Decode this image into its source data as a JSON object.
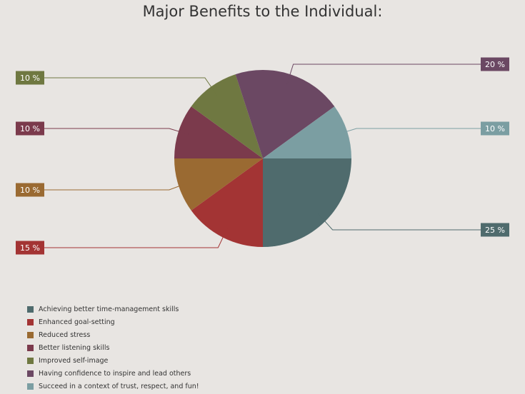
{
  "chart_data": {
    "type": "pie",
    "title": "Major Benefits to the Individual:",
    "slices": [
      {
        "label": "Achieving better time-management skills",
        "value": 25,
        "value_label": "25 %",
        "color": "#4f6b6d"
      },
      {
        "label": "Enhanced goal-setting",
        "value": 15,
        "value_label": "15 %",
        "color": "#a33434"
      },
      {
        "label": "Reduced stress",
        "value": 10,
        "value_label": "10 %",
        "color": "#9a6a32"
      },
      {
        "label": "Better listening skills",
        "value": 10,
        "value_label": "10 %",
        "color": "#7b3a4c"
      },
      {
        "label": "Improved self-image",
        "value": 10,
        "value_label": "10 %",
        "color": "#6f7841"
      },
      {
        "label": "Having confidence to inspire and lead others",
        "value": 20,
        "value_label": "20 %",
        "color": "#6b4863"
      },
      {
        "label": "Succeed in a context of trust, respect, and fun!",
        "value": 10,
        "value_label": "10 %",
        "color": "#7b9ea2"
      }
    ],
    "start_angle": "3 o'clock",
    "direction": "clockwise",
    "legend_position": "bottom-left"
  }
}
